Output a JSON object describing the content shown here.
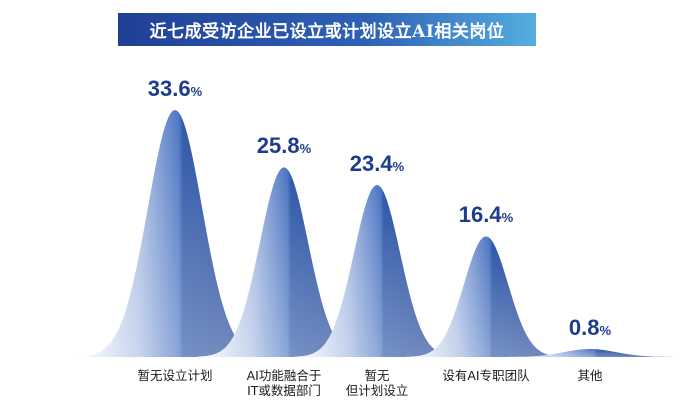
{
  "chart_data": {
    "type": "area",
    "title": "近七成受访企业已设立或计划设立AI相关岗位",
    "categories": [
      [
        "暂无设立计划"
      ],
      [
        "AI功能融合于",
        "IT或数据部门"
      ],
      [
        "暂无",
        "但计划设立"
      ],
      [
        "设有AI专职团队"
      ],
      [
        "其他"
      ]
    ],
    "values": [
      33.6,
      25.8,
      23.4,
      16.4,
      0.8
    ],
    "value_labels": [
      "33.6",
      "25.8",
      "23.4",
      "16.4",
      "0.8"
    ],
    "unit": "%",
    "ylim": [
      0,
      40
    ],
    "grid": false,
    "legend": "none",
    "colors": {
      "light": "#ffffff",
      "mid": "#8fa8d8",
      "dark": "#2a55a8",
      "deep": "#203f8e",
      "banner_start": "#1f3f95",
      "banner_end": "#55aee0",
      "label": "#1d3c8c"
    }
  }
}
